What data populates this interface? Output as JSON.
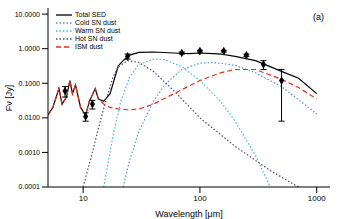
{
  "chart_data": {
    "type": "line",
    "annotation": "(a)",
    "xlabel": "Wavelength [μm]",
    "ylabel": "Fν [Jy]",
    "log": true,
    "grid": false,
    "legend": "upper left",
    "xlim": [
      5,
      1300
    ],
    "xticks": [
      10,
      100,
      1000
    ],
    "ylim": [
      0.0001,
      15
    ],
    "yticks": [
      {
        "value": 0.0001,
        "label": "0.0001"
      },
      {
        "value": 0.001,
        "label": "0.0010"
      },
      {
        "value": 0.01,
        "label": "0.0100"
      },
      {
        "value": 0.1,
        "label": "0.1000"
      },
      {
        "value": 1,
        "label": "1.0000"
      },
      {
        "value": 10,
        "label": "10.0000"
      }
    ],
    "series": [
      {
        "name": "Total SED",
        "color": "#000000",
        "line_style": "solid",
        "x": [
          5,
          5.5,
          6.2,
          6.6,
          7.2,
          7.7,
          8.1,
          8.6,
          9.5,
          10.5,
          11.3,
          12.7,
          13.5,
          15,
          17,
          20,
          22,
          25,
          30,
          40,
          60,
          80,
          100,
          130,
          150,
          200,
          300,
          500,
          700,
          1000
        ],
        "values": [
          0.012,
          0.02,
          0.07,
          0.025,
          0.04,
          0.12,
          0.05,
          0.09,
          0.02,
          0.012,
          0.03,
          0.07,
          0.035,
          0.03,
          0.05,
          0.32,
          0.45,
          0.65,
          0.78,
          0.8,
          0.75,
          0.72,
          0.75,
          0.72,
          0.7,
          0.6,
          0.45,
          0.22,
          0.14,
          0.05
        ]
      },
      {
        "name": "Cold SN dust",
        "color": "#5b8fd6",
        "line_style": "dotted",
        "x": [
          22,
          25,
          30,
          40,
          50,
          70,
          100,
          130,
          200,
          300,
          500,
          1000
        ],
        "values": [
          0.0001,
          0.0006,
          0.004,
          0.03,
          0.09,
          0.25,
          0.38,
          0.4,
          0.33,
          0.2,
          0.08,
          0.013
        ]
      },
      {
        "name": "Warm SN dust",
        "color": "#3cbcc8",
        "line_style": "dotted",
        "x": [
          15,
          18,
          21,
          25,
          30,
          40,
          50,
          70,
          100,
          150,
          200,
          300,
          400
        ],
        "values": [
          0.0001,
          0.003,
          0.03,
          0.15,
          0.35,
          0.5,
          0.48,
          0.3,
          0.12,
          0.03,
          0.008,
          0.0008,
          0.0001
        ]
      },
      {
        "name": "Hot SN dust",
        "color": "#4b4b6b",
        "line_style": "dotted",
        "x": [
          10,
          12,
          14,
          16,
          18,
          20,
          24,
          30,
          40,
          60,
          100,
          200,
          400,
          700
        ],
        "values": [
          0.0001,
          0.001,
          0.008,
          0.04,
          0.15,
          0.3,
          0.45,
          0.4,
          0.22,
          0.06,
          0.01,
          0.0015,
          0.0003,
          0.0001
        ]
      },
      {
        "name": "ISM dust",
        "color": "#e0301e",
        "line_style": "dashed",
        "x": [
          5,
          5.5,
          6.2,
          6.6,
          7.2,
          7.7,
          8.1,
          8.6,
          9.5,
          10.5,
          11.3,
          12.7,
          13.5,
          15,
          17,
          20,
          25,
          30,
          40,
          60,
          100,
          150,
          200,
          300,
          500,
          700,
          1000
        ],
        "values": [
          0.012,
          0.02,
          0.07,
          0.025,
          0.04,
          0.12,
          0.05,
          0.09,
          0.02,
          0.012,
          0.03,
          0.07,
          0.035,
          0.025,
          0.02,
          0.018,
          0.017,
          0.018,
          0.025,
          0.05,
          0.12,
          0.2,
          0.25,
          0.25,
          0.13,
          0.075,
          0.035
        ]
      }
    ],
    "points": {
      "type": "scatter",
      "marker": "diamond",
      "color": "#000000",
      "x": [
        7,
        10.5,
        12,
        24,
        70,
        100,
        160,
        250,
        350,
        500
      ],
      "values": [
        0.06,
        0.011,
        0.025,
        0.6,
        0.75,
        0.85,
        0.85,
        0.65,
        0.35,
        0.12
      ],
      "errors": [
        [
          0.02,
          0.02
        ],
        [
          0.003,
          0.003
        ],
        [
          0.007,
          0.007
        ],
        [
          0.1,
          0.1
        ],
        [
          0.05,
          0.05
        ],
        [
          0.05,
          0.05
        ],
        [
          0.05,
          0.05
        ],
        [
          0.05,
          0.05
        ],
        [
          0.1,
          0.1
        ],
        [
          0.112,
          0.13
        ]
      ]
    }
  }
}
